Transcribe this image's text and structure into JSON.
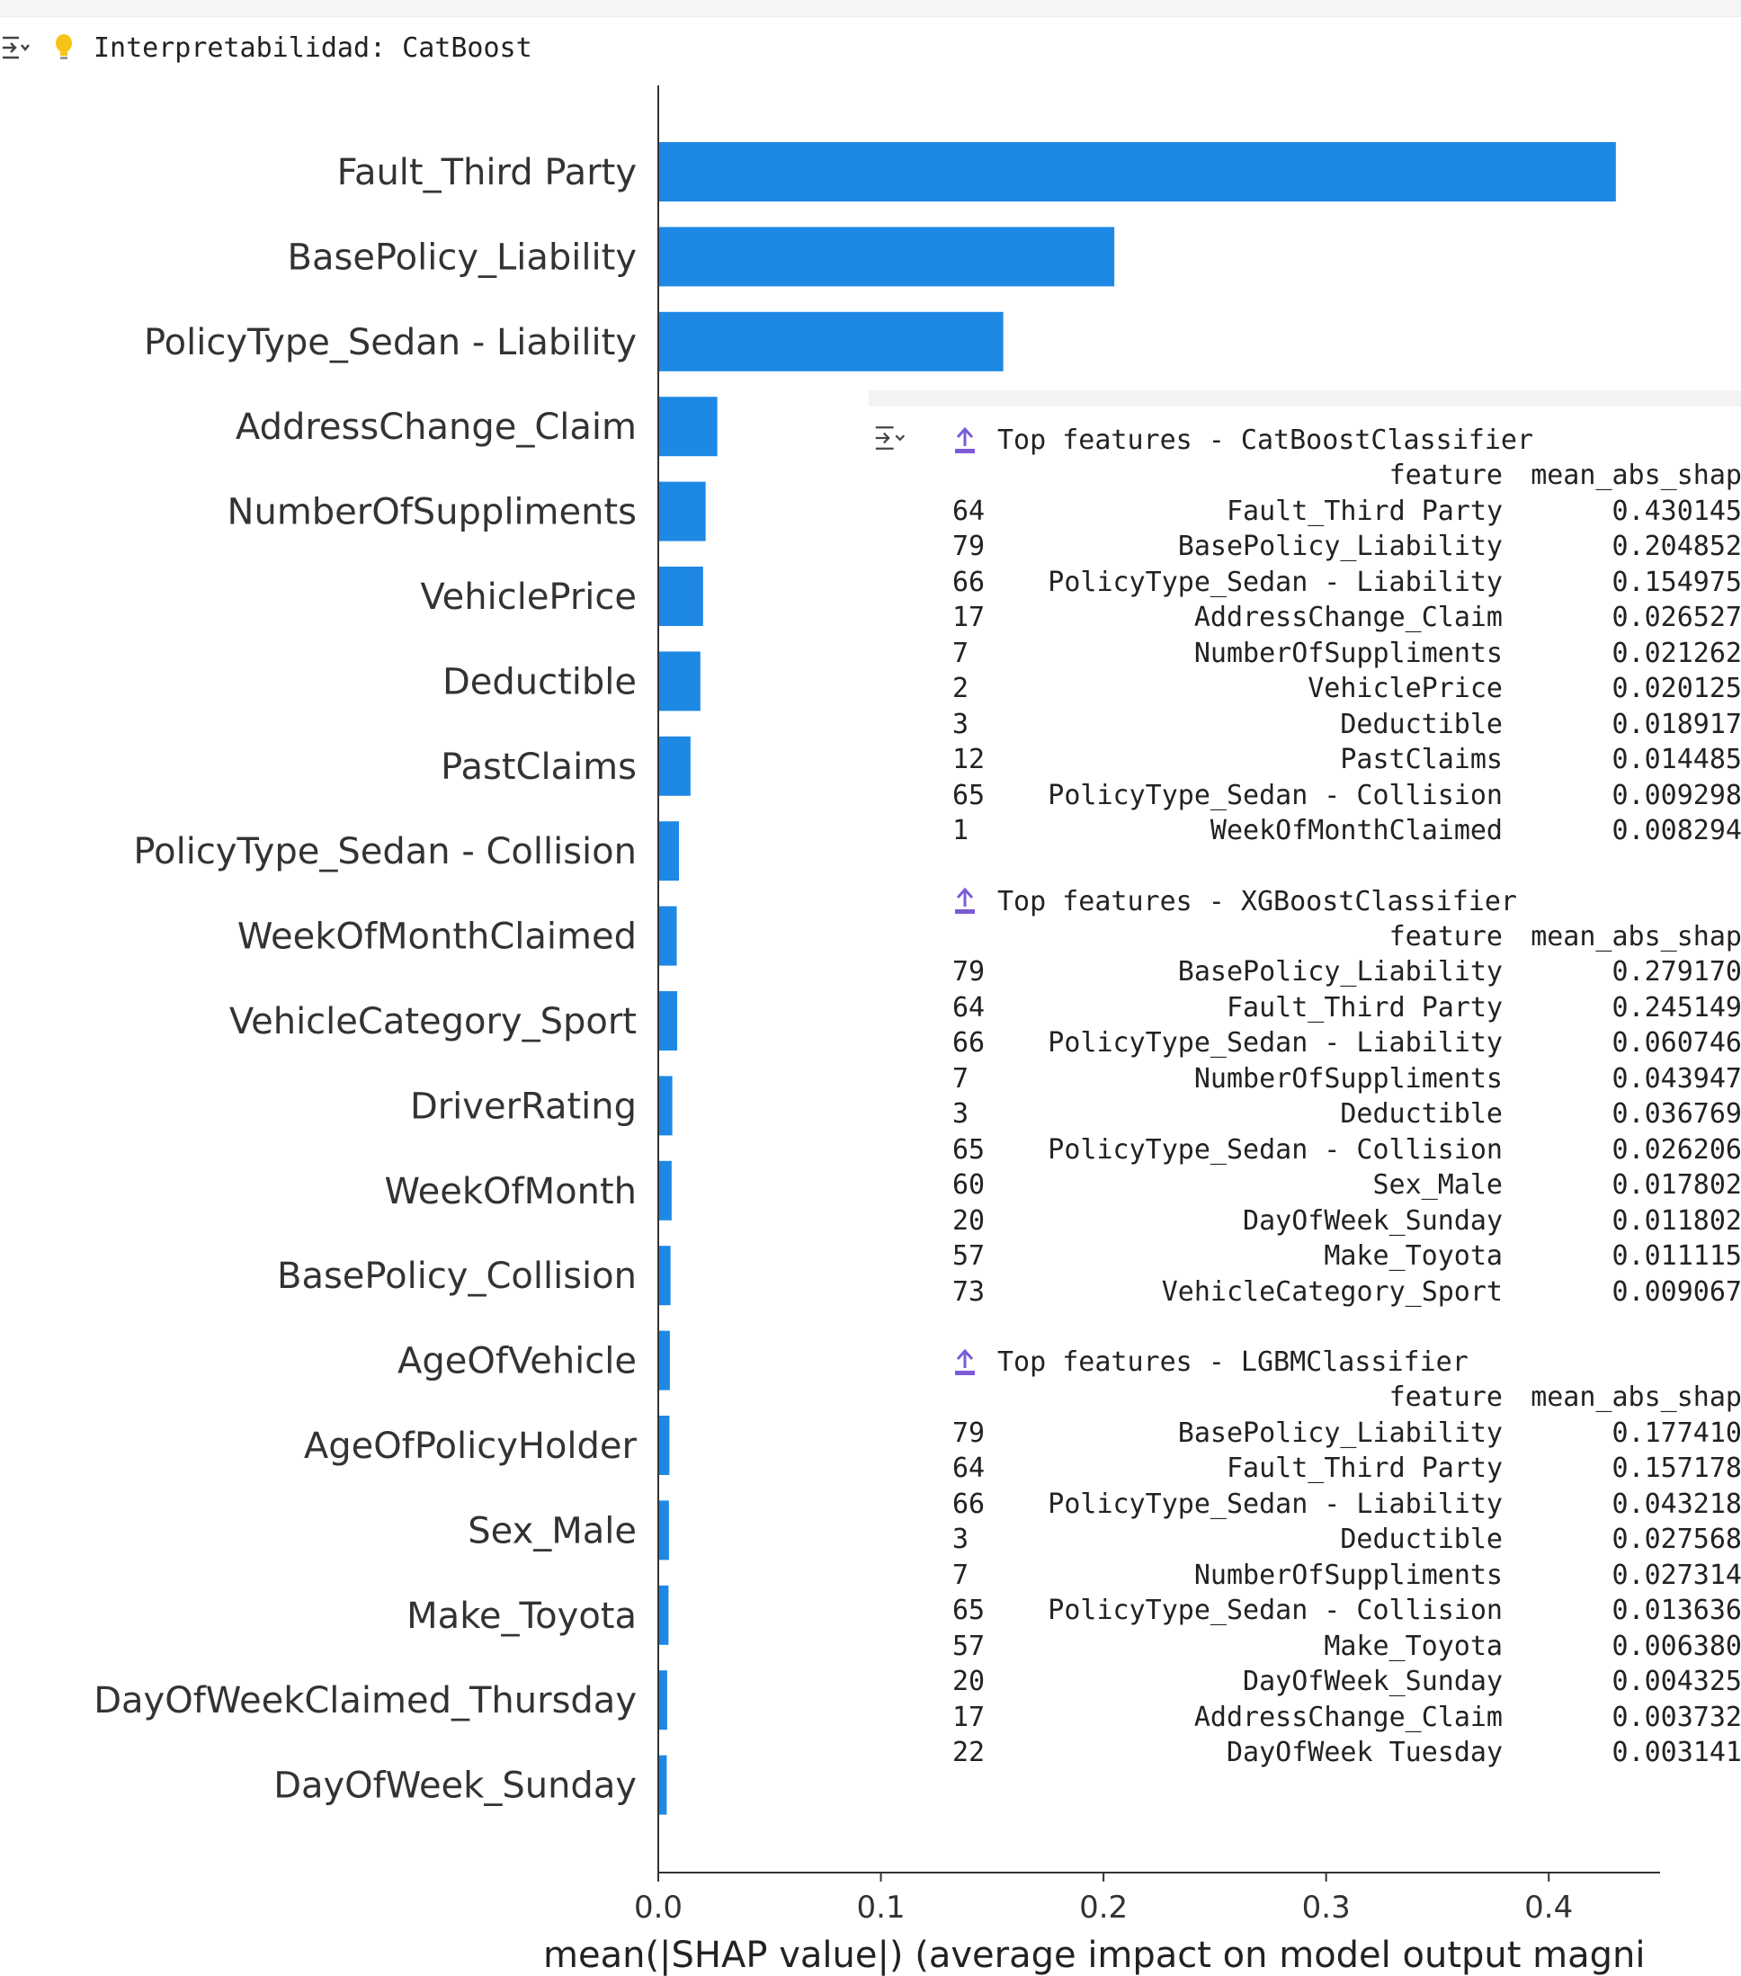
{
  "header": {
    "title": "Interpretabilidad: CatBoost",
    "output_icon": "collapse-output-icon",
    "bulb_icon": "lightbulb-icon"
  },
  "chart_data": {
    "type": "bar",
    "orientation": "horizontal",
    "categories": [
      "Fault_Third Party",
      "BasePolicy_Liability",
      "PolicyType_Sedan - Liability",
      "AddressChange_Claim",
      "NumberOfSuppliments",
      "VehiclePrice",
      "Deductible",
      "PastClaims",
      "PolicyType_Sedan - Collision",
      "WeekOfMonthClaimed",
      "VehicleCategory_Sport",
      "DriverRating",
      "WeekOfMonth",
      "BasePolicy_Collision",
      "AgeOfVehicle",
      "AgeOfPolicyHolder",
      "Sex_Male",
      "Make_Toyota",
      "DayOfWeekClaimed_Thursday",
      "DayOfWeek_Sunday"
    ],
    "values": [
      0.430145,
      0.204852,
      0.154975,
      0.026527,
      0.021262,
      0.020125,
      0.018917,
      0.014485,
      0.009298,
      0.008294,
      0.0085,
      0.0063,
      0.006,
      0.0055,
      0.0052,
      0.005,
      0.0048,
      0.0046,
      0.004,
      0.0038
    ],
    "xlabel": "mean(|SHAP value|) (average impact on model output magni",
    "xticks": [
      "0.0",
      "0.1",
      "0.2",
      "0.3",
      "0.4"
    ],
    "xlim": [
      0,
      0.45
    ],
    "bar_color": "#1e88e5"
  },
  "tables_panel": {
    "output_icon": "collapse-output-icon",
    "tables": [
      {
        "title": "Top features - CatBoostClassifier",
        "icon": "top-arrow-icon",
        "columns": [
          "feature",
          "mean_abs_shap"
        ],
        "rows": [
          [
            "64",
            "Fault_Third Party",
            "0.430145"
          ],
          [
            "79",
            "BasePolicy_Liability",
            "0.204852"
          ],
          [
            "66",
            "PolicyType_Sedan - Liability",
            "0.154975"
          ],
          [
            "17",
            "AddressChange_Claim",
            "0.026527"
          ],
          [
            "7",
            "NumberOfSuppliments",
            "0.021262"
          ],
          [
            "2",
            "VehiclePrice",
            "0.020125"
          ],
          [
            "3",
            "Deductible",
            "0.018917"
          ],
          [
            "12",
            "PastClaims",
            "0.014485"
          ],
          [
            "65",
            "PolicyType_Sedan - Collision",
            "0.009298"
          ],
          [
            "1",
            "WeekOfMonthClaimed",
            "0.008294"
          ]
        ]
      },
      {
        "title": "Top features - XGBoostClassifier",
        "icon": "top-arrow-icon",
        "columns": [
          "feature",
          "mean_abs_shap"
        ],
        "rows": [
          [
            "79",
            "BasePolicy_Liability",
            "0.279170"
          ],
          [
            "64",
            "Fault_Third Party",
            "0.245149"
          ],
          [
            "66",
            "PolicyType_Sedan - Liability",
            "0.060746"
          ],
          [
            "7",
            "NumberOfSuppliments",
            "0.043947"
          ],
          [
            "3",
            "Deductible",
            "0.036769"
          ],
          [
            "65",
            "PolicyType_Sedan - Collision",
            "0.026206"
          ],
          [
            "60",
            "Sex_Male",
            "0.017802"
          ],
          [
            "20",
            "DayOfWeek_Sunday",
            "0.011802"
          ],
          [
            "57",
            "Make_Toyota",
            "0.011115"
          ],
          [
            "73",
            "VehicleCategory_Sport",
            "0.009067"
          ]
        ]
      },
      {
        "title": "Top features - LGBMClassifier",
        "icon": "top-arrow-icon",
        "columns": [
          "feature",
          "mean_abs_shap"
        ],
        "rows": [
          [
            "79",
            "BasePolicy_Liability",
            "0.177410"
          ],
          [
            "64",
            "Fault_Third Party",
            "0.157178"
          ],
          [
            "66",
            "PolicyType_Sedan - Liability",
            "0.043218"
          ],
          [
            "3",
            "Deductible",
            "0.027568"
          ],
          [
            "7",
            "NumberOfSuppliments",
            "0.027314"
          ],
          [
            "65",
            "PolicyType_Sedan - Collision",
            "0.013636"
          ],
          [
            "57",
            "Make_Toyota",
            "0.006380"
          ],
          [
            "20",
            "DayOfWeek_Sunday",
            "0.004325"
          ],
          [
            "17",
            "AddressChange_Claim",
            "0.003732"
          ],
          [
            "22",
            "DayOfWeek Tuesday",
            "0.003141"
          ]
        ]
      }
    ]
  }
}
